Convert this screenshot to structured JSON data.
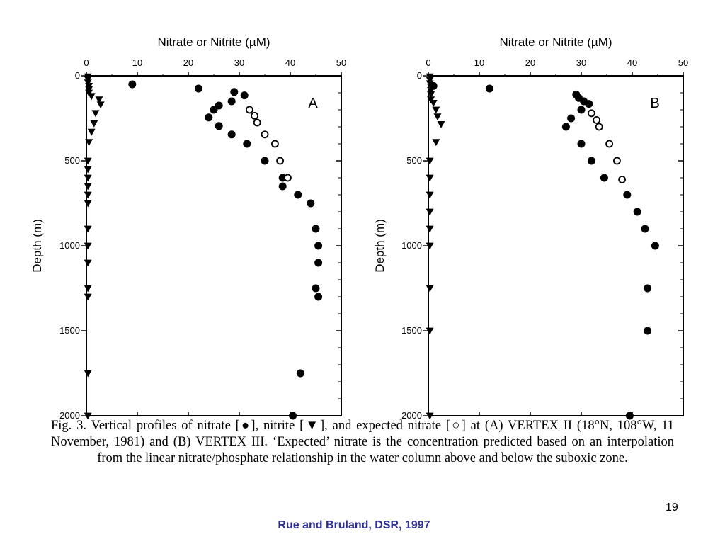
{
  "slide": {
    "page_number": "19",
    "citation": "Rue and Bruland, DSR, 1997"
  },
  "caption": {
    "text": "Fig. 3.   Vertical profiles of nitrate [●], nitrite [▼], and expected nitrate [○] at (A) VERTEX II (18°N, 108°W, 11 November, 1981) and (B) VERTEX III. ‘Expected’ nitrate is the concentration predicted based on an interpolation from the linear nitrate/phosphate relationship in the water column above and below the suboxic zone."
  },
  "colors": {
    "markers": "#000000",
    "citation": "#2e3192"
  },
  "chart_data": [
    {
      "type": "scatter",
      "panel_label": "A",
      "xlabel": "Nitrate or Nitrite (µM)",
      "ylabel": "Depth (m)",
      "xlim": [
        0,
        50
      ],
      "ylim": [
        0,
        2000
      ],
      "y_inverted": true,
      "x_axis_position": "top",
      "x_ticks": [
        "0",
        "10",
        "20",
        "30",
        "40",
        "50"
      ],
      "y_ticks": [
        "0",
        "500",
        "1000",
        "1500",
        "2000"
      ],
      "series": [
        {
          "name": "nitrate",
          "marker": "filled-circle",
          "points": [
            [
              9,
              50
            ],
            [
              22,
              75
            ],
            [
              29,
              95
            ],
            [
              31,
              115
            ],
            [
              28.5,
              150
            ],
            [
              26,
              175
            ],
            [
              25,
              200
            ],
            [
              24,
              245
            ],
            [
              26,
              295
            ],
            [
              28.5,
              345
            ],
            [
              31.5,
              400
            ],
            [
              35,
              500
            ],
            [
              38.5,
              600
            ],
            [
              38.5,
              650
            ],
            [
              41.5,
              700
            ],
            [
              44,
              750
            ],
            [
              45,
              900
            ],
            [
              45.5,
              1000
            ],
            [
              45.5,
              1100
            ],
            [
              45,
              1250
            ],
            [
              45.5,
              1300
            ],
            [
              42,
              1750
            ],
            [
              40.5,
              2000
            ]
          ]
        },
        {
          "name": "nitrite",
          "marker": "filled-triangle-down",
          "points": [
            [
              0.3,
              5
            ],
            [
              0.3,
              20
            ],
            [
              0.3,
              40
            ],
            [
              0.5,
              60
            ],
            [
              0.5,
              80
            ],
            [
              0.5,
              100
            ],
            [
              1,
              120
            ],
            [
              2.5,
              140
            ],
            [
              2.8,
              170
            ],
            [
              1.8,
              220
            ],
            [
              1.5,
              280
            ],
            [
              1,
              330
            ],
            [
              0.5,
              390
            ],
            [
              0.3,
              500
            ],
            [
              0.3,
              550
            ],
            [
              0.3,
              600
            ],
            [
              0.3,
              650
            ],
            [
              0.3,
              700
            ],
            [
              0.3,
              750
            ],
            [
              0.3,
              900
            ],
            [
              0.3,
              1000
            ],
            [
              0.3,
              1100
            ],
            [
              0.3,
              1250
            ],
            [
              0.3,
              1300
            ],
            [
              0.3,
              1750
            ],
            [
              0.3,
              2000
            ]
          ]
        },
        {
          "name": "expected nitrate",
          "marker": "open-circle",
          "points": [
            [
              32,
              200
            ],
            [
              33,
              235
            ],
            [
              33.5,
              275
            ],
            [
              35,
              345
            ],
            [
              37,
              400
            ],
            [
              38,
              500
            ],
            [
              39.5,
              600
            ]
          ]
        }
      ]
    },
    {
      "type": "scatter",
      "panel_label": "B",
      "xlabel": "Nitrate or Nitrite (µM)",
      "ylabel": "Depth (m)",
      "xlim": [
        0,
        50
      ],
      "ylim": [
        0,
        2000
      ],
      "y_inverted": true,
      "x_axis_position": "top",
      "x_ticks": [
        "0",
        "10",
        "20",
        "30",
        "40",
        "50"
      ],
      "y_ticks": [
        "0",
        "500",
        "1000",
        "1500",
        "2000"
      ],
      "series": [
        {
          "name": "nitrate",
          "marker": "filled-circle",
          "points": [
            [
              1,
              60
            ],
            [
              12,
              75
            ],
            [
              29,
              110
            ],
            [
              29.5,
              130
            ],
            [
              30.5,
              150
            ],
            [
              31.5,
              165
            ],
            [
              30,
              200
            ],
            [
              28,
              250
            ],
            [
              27,
              300
            ],
            [
              30,
              400
            ],
            [
              32,
              500
            ],
            [
              34.5,
              600
            ],
            [
              39,
              700
            ],
            [
              41,
              800
            ],
            [
              42.5,
              900
            ],
            [
              44.5,
              1000
            ],
            [
              43,
              1250
            ],
            [
              43,
              1500
            ],
            [
              39.5,
              2000
            ]
          ]
        },
        {
          "name": "nitrite",
          "marker": "filled-triangle-down",
          "points": [
            [
              0.3,
              5
            ],
            [
              0.3,
              25
            ],
            [
              0.3,
              45
            ],
            [
              0.5,
              65
            ],
            [
              0.5,
              85
            ],
            [
              0.5,
              110
            ],
            [
              0.5,
              140
            ],
            [
              1,
              160
            ],
            [
              1.5,
              200
            ],
            [
              1.8,
              240
            ],
            [
              2.5,
              285
            ],
            [
              1.5,
              390
            ],
            [
              0.3,
              500
            ],
            [
              0.3,
              600
            ],
            [
              0.3,
              700
            ],
            [
              0.3,
              800
            ],
            [
              0.3,
              900
            ],
            [
              0.3,
              1000
            ],
            [
              0.3,
              1250
            ],
            [
              0.3,
              1500
            ],
            [
              0.3,
              2000
            ]
          ]
        },
        {
          "name": "expected nitrate",
          "marker": "open-circle",
          "points": [
            [
              32,
              220
            ],
            [
              33,
              260
            ],
            [
              33.5,
              300
            ],
            [
              35.5,
              400
            ],
            [
              37,
              500
            ],
            [
              38,
              610
            ]
          ]
        }
      ]
    }
  ]
}
